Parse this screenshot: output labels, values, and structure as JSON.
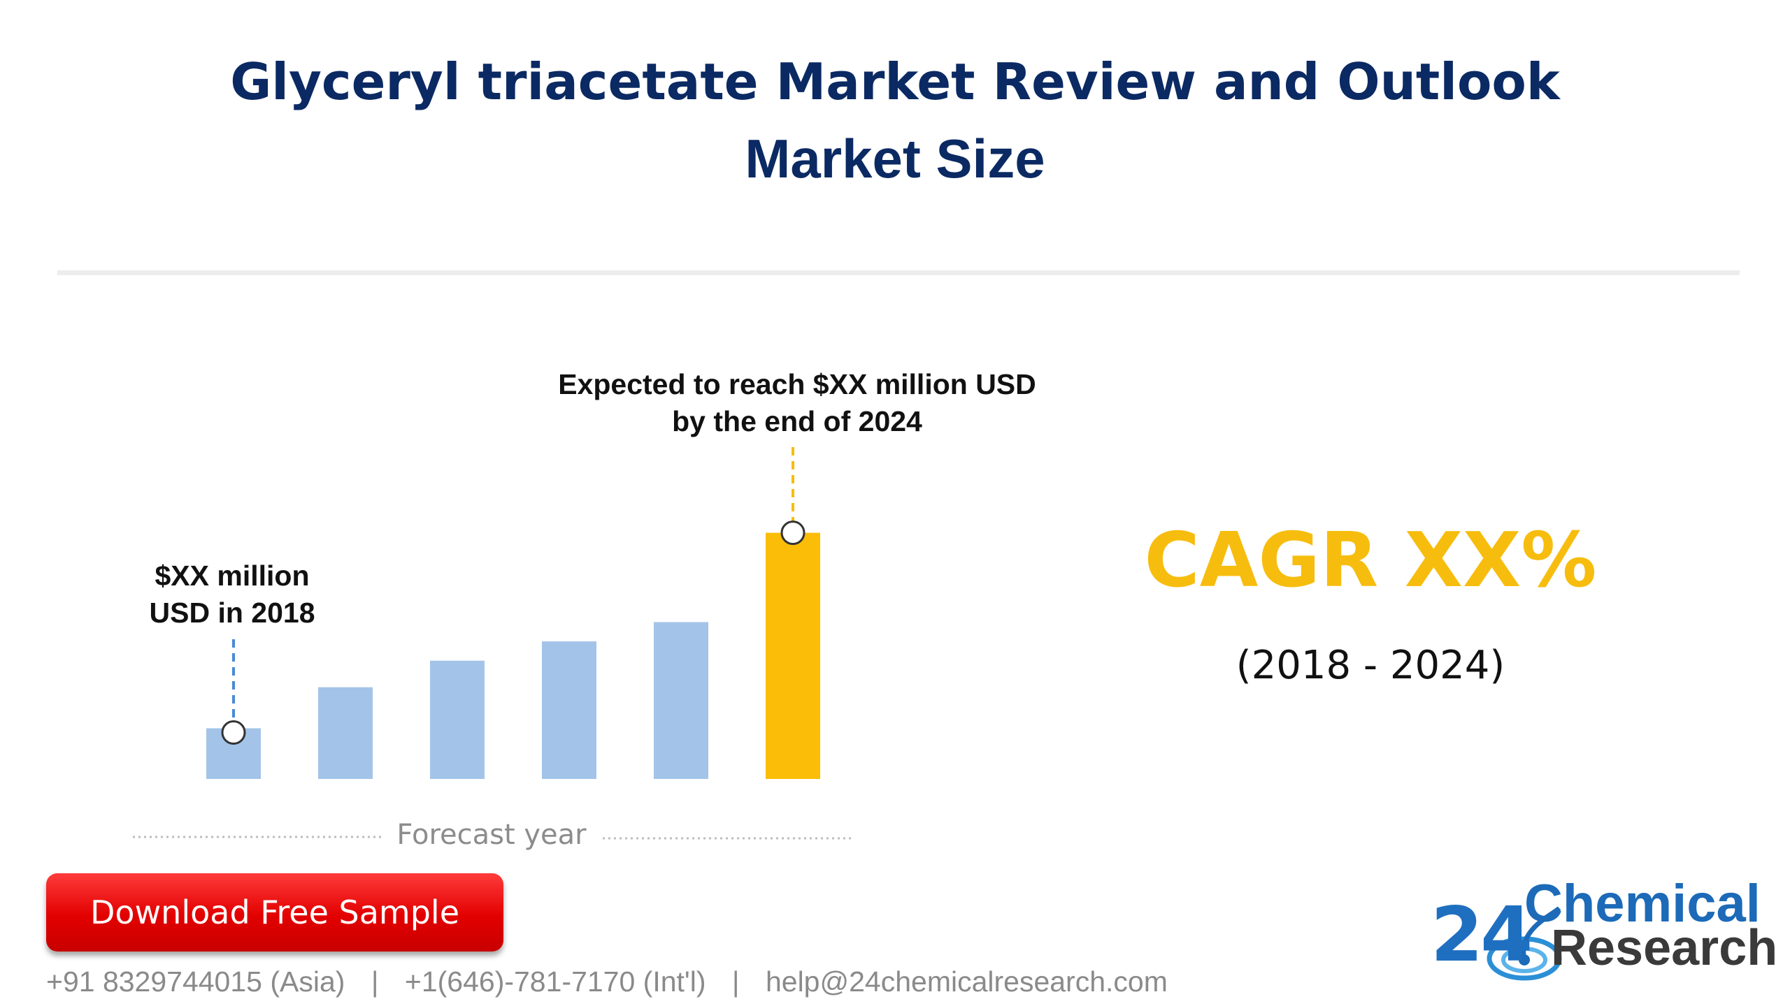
{
  "header": {
    "title_line1": "Glyceryl triacetate Market Review and Outlook",
    "title_line2": "Market Size"
  },
  "chart_data": {
    "type": "bar",
    "categories": [
      "",
      "",
      "",
      "",
      "",
      ""
    ],
    "values": [
      21,
      38,
      49,
      57,
      65,
      102
    ],
    "annotation_start": [
      "$XX million",
      "USD in 2018"
    ],
    "annotation_end": [
      "Expected to reach $XX million USD",
      "by the end of 2024"
    ],
    "xlabel": "Forecast year",
    "ylim": [
      0,
      110
    ],
    "grid": false,
    "colors": {
      "bar": "#a3c4e8",
      "highlight": "#fbbd08",
      "start_marker_line": "#4a8ad4",
      "end_marker_line": "#f7bd0e"
    }
  },
  "cagr": {
    "label": "CAGR XX%",
    "period": "(2018 - 2024)"
  },
  "cta": {
    "download_label": "Download Free Sample"
  },
  "contact": {
    "phone_asia": "+91 8329744015 (Asia)",
    "separator": "|",
    "phone_intl": "+1(646)-781-7170 (Int'l)",
    "email": "help@24chemicalresearch.com"
  },
  "logo": {
    "number": "24",
    "word1": "Chemical",
    "word2": "Research"
  },
  "colors": {
    "title": "#0b2a63",
    "cagr": "#f7bd0e",
    "button": "#e20000"
  }
}
